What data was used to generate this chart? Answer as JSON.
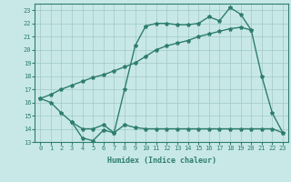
{
  "line1_x": [
    0,
    1,
    2,
    3,
    4,
    5,
    6,
    7,
    8,
    9,
    10,
    11,
    12,
    13,
    14,
    15,
    16,
    17,
    18,
    19,
    20,
    21,
    22,
    23
  ],
  "line1_y": [
    16.3,
    16.0,
    15.2,
    14.5,
    13.3,
    13.1,
    13.9,
    13.7,
    17.0,
    20.3,
    21.8,
    22.0,
    22.0,
    21.9,
    21.9,
    22.0,
    22.5,
    22.2,
    23.2,
    22.7,
    21.5,
    18.0,
    15.2,
    13.7
  ],
  "line2_x": [
    0,
    1,
    2,
    3,
    4,
    5,
    6,
    7,
    8,
    9,
    10,
    11,
    12,
    13,
    14,
    15,
    16,
    17,
    18,
    19,
    20
  ],
  "line2_y": [
    16.3,
    16.6,
    17.0,
    17.3,
    17.6,
    17.9,
    18.1,
    18.4,
    18.7,
    19.0,
    19.5,
    20.0,
    20.3,
    20.5,
    20.7,
    21.0,
    21.2,
    21.4,
    21.6,
    21.7,
    21.5
  ],
  "line3_x": [
    3,
    4,
    5,
    6,
    7,
    8,
    9,
    10,
    11,
    12,
    13,
    14,
    15,
    16,
    17,
    18,
    19,
    20,
    21,
    22,
    23
  ],
  "line3_y": [
    14.5,
    14.0,
    14.0,
    14.3,
    13.7,
    14.3,
    14.1,
    14.0,
    14.0,
    14.0,
    14.0,
    14.0,
    14.0,
    14.0,
    14.0,
    14.0,
    14.0,
    14.0,
    14.0,
    14.0,
    13.7
  ],
  "color": "#2e7d6e",
  "bg_color": "#c8e8e8",
  "grid_color": "#a0c8c8",
  "xlabel": "Humidex (Indice chaleur)",
  "xlim": [
    -0.5,
    23.5
  ],
  "ylim": [
    13,
    23.5
  ],
  "xticks": [
    0,
    1,
    2,
    3,
    4,
    5,
    6,
    7,
    8,
    9,
    10,
    11,
    12,
    13,
    14,
    15,
    16,
    17,
    18,
    19,
    20,
    21,
    22,
    23
  ],
  "yticks": [
    13,
    14,
    15,
    16,
    17,
    18,
    19,
    20,
    21,
    22,
    23
  ],
  "marker": "*",
  "markersize": 3,
  "linewidth": 1.0,
  "xlabel_fontsize": 6,
  "tick_fontsize": 5
}
